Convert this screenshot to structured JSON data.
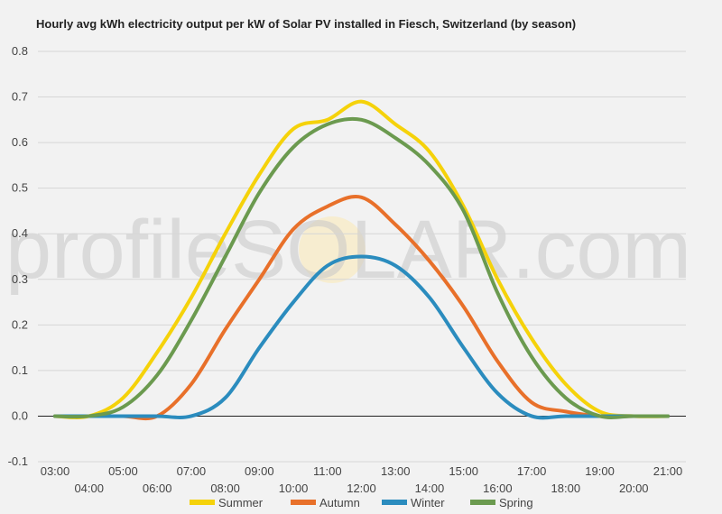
{
  "chart_data": {
    "type": "line",
    "title": "Hourly avg kWh electricity output per kW of Solar PV installed in Fiesch, Switzerland (by season)",
    "watermark": "profileSOLAR.com",
    "x": [
      "03:00",
      "04:00",
      "05:00",
      "06:00",
      "07:00",
      "08:00",
      "09:00",
      "10:00",
      "11:00",
      "12:00",
      "13:00",
      "14:00",
      "15:00",
      "16:00",
      "17:00",
      "18:00",
      "19:00",
      "20:00",
      "21:00"
    ],
    "ylim": [
      -0.1,
      0.8
    ],
    "yticks": [
      "-0.1",
      "0.0",
      "0.1",
      "0.2",
      "0.3",
      "0.4",
      "0.5",
      "0.6",
      "0.7",
      "0.8"
    ],
    "grid": true,
    "legend_position": "bottom",
    "series": [
      {
        "name": "Summer",
        "color": "#f5d20a",
        "values": [
          0.0,
          0.0,
          0.04,
          0.14,
          0.26,
          0.4,
          0.53,
          0.63,
          0.65,
          0.69,
          0.64,
          0.58,
          0.46,
          0.3,
          0.17,
          0.07,
          0.01,
          0.0,
          0.0
        ]
      },
      {
        "name": "Autumn",
        "color": "#e8702a",
        "values": [
          0.0,
          0.0,
          0.0,
          0.0,
          0.07,
          0.19,
          0.3,
          0.41,
          0.46,
          0.48,
          0.42,
          0.34,
          0.24,
          0.12,
          0.03,
          0.01,
          0.0,
          0.0,
          0.0
        ]
      },
      {
        "name": "Winter",
        "color": "#2b8cbe",
        "values": [
          0.0,
          0.0,
          0.0,
          0.0,
          0.0,
          0.04,
          0.15,
          0.25,
          0.33,
          0.35,
          0.33,
          0.26,
          0.15,
          0.05,
          0.0,
          0.0,
          0.0,
          0.0,
          0.0
        ]
      },
      {
        "name": "Spring",
        "color": "#6b9a4f",
        "values": [
          0.0,
          0.0,
          0.02,
          0.09,
          0.21,
          0.35,
          0.49,
          0.59,
          0.64,
          0.65,
          0.61,
          0.55,
          0.45,
          0.27,
          0.13,
          0.04,
          0.0,
          0.0,
          0.0
        ]
      }
    ]
  }
}
